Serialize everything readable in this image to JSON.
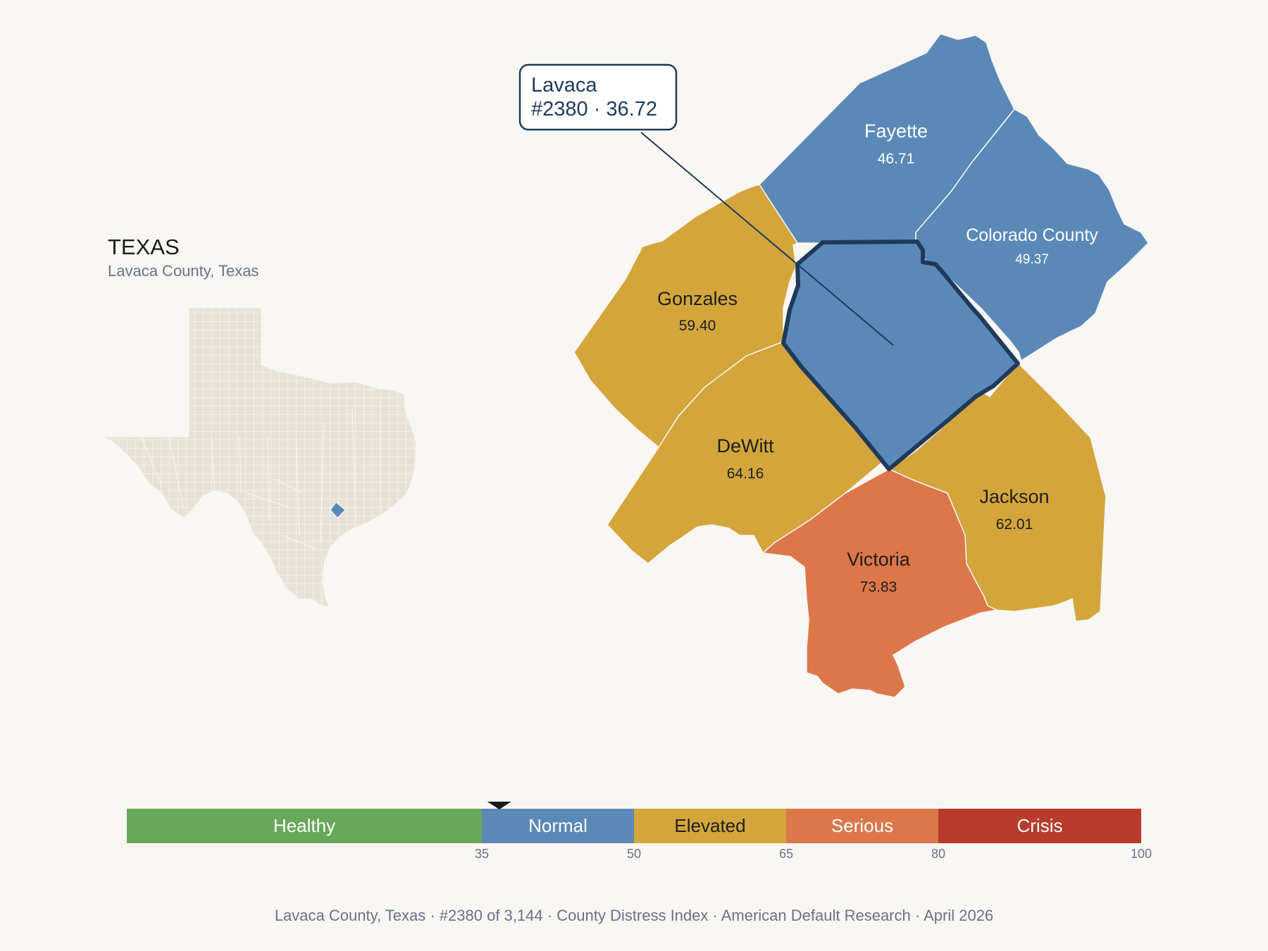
{
  "state": {
    "title": "TEXAS",
    "subtitle": "Lavaca County, Texas"
  },
  "selected": {
    "name": "Lavaca",
    "rank_score": "#2380 · 36.72",
    "score": 36.72,
    "color": "#5a89b8",
    "outline_color": "#1f3a5c"
  },
  "counties": [
    {
      "id": "fayette",
      "name": "Fayette",
      "score": "46.71",
      "color": "#5a89b8"
    },
    {
      "id": "colorado",
      "name": "Colorado County",
      "score": "49.37",
      "color": "#5a89b8"
    },
    {
      "id": "gonzales",
      "name": "Gonzales",
      "score": "59.40",
      "color": "#d3a53b"
    },
    {
      "id": "dewitt",
      "name": "DeWitt",
      "score": "64.16",
      "color": "#d3a53b"
    },
    {
      "id": "jackson",
      "name": "Jackson",
      "score": "62.01",
      "color": "#d3a53b"
    },
    {
      "id": "victoria",
      "name": "Victoria",
      "score": "73.83",
      "color": "#dc774a"
    }
  ],
  "scale": {
    "min": 0,
    "max": 100,
    "marker_value": 36.72,
    "bands": [
      {
        "label": "Healthy",
        "from": 0,
        "to": 35,
        "color": "#67a85a"
      },
      {
        "label": "Normal",
        "from": 35,
        "to": 50,
        "color": "#5a89b8"
      },
      {
        "label": "Elevated",
        "from": 50,
        "to": 65,
        "color": "#d3a53b"
      },
      {
        "label": "Serious",
        "from": 65,
        "to": 80,
        "color": "#dc774a"
      },
      {
        "label": "Crisis",
        "from": 80,
        "to": 100,
        "color": "#b83b2c"
      }
    ],
    "ticks": [
      "35",
      "50",
      "65",
      "80",
      "100"
    ]
  },
  "footer": {
    "parts": [
      "Lavaca County, Texas",
      "#2380 of 3,144",
      "County Distress Index",
      "American Default Research",
      "April 2026"
    ]
  },
  "colors": {
    "background": "#f9f7f3",
    "state_fill": "#e8e2d6",
    "state_highlight": "#5a89b8"
  }
}
